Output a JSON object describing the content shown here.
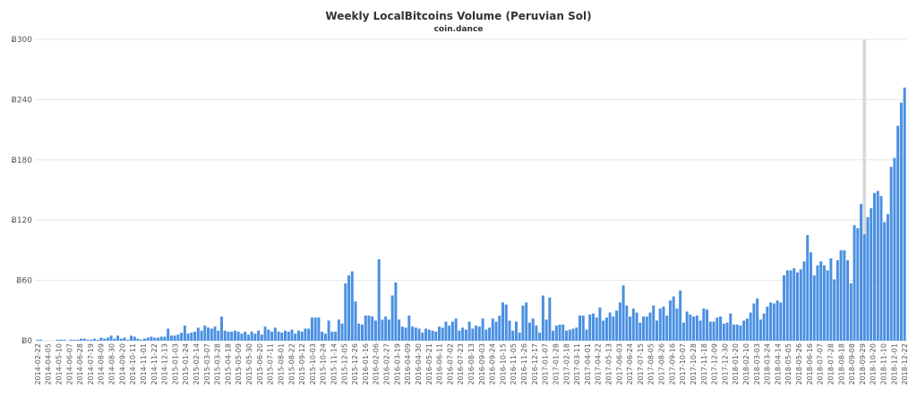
{
  "chart_data": {
    "type": "bar",
    "title": "Weekly LocalBitcoins Volume (Peruvian Sol)",
    "subtitle": "coin.dance",
    "ylim": [
      0,
      300
    ],
    "y_tick_labels": [
      "Ƀ0",
      "Ƀ60",
      "Ƀ120",
      "Ƀ180",
      "Ƀ240",
      "Ƀ300"
    ],
    "x_tick_labels": [
      "2014-02-22",
      "2014-04-05",
      "2014-05-10",
      "2014-06-07",
      "2014-06-28",
      "2014-07-19",
      "2014-08-09",
      "2014-08-30",
      "2014-09-20",
      "2014-10-11",
      "2014-11-01",
      "2014-11-22",
      "2014-12-13",
      "2015-01-03",
      "2015-01-24",
      "2015-02-14",
      "2015-03-07",
      "2015-03-28",
      "2015-04-18",
      "2015-05-09",
      "2015-05-30",
      "2015-06-20",
      "2015-07-11",
      "2015-08-01",
      "2015-08-22",
      "2015-09-12",
      "2015-10-03",
      "2015-10-24",
      "2015-11-14",
      "2015-12-05",
      "2015-12-26",
      "2016-01-16",
      "2016-02-06",
      "2016-02-27",
      "2016-03-19",
      "2016-04-09",
      "2016-04-30",
      "2016-05-21",
      "2016-06-11",
      "2016-07-02",
      "2016-07-23",
      "2016-08-13",
      "2016-09-03",
      "2016-09-24",
      "2016-10-15",
      "2016-11-05",
      "2016-11-26",
      "2016-12-17",
      "2017-01-07",
      "2017-01-28",
      "2017-02-18",
      "2017-03-11",
      "2017-04-01",
      "2017-04-22",
      "2017-05-13",
      "2017-06-03",
      "2017-06-24",
      "2017-07-15",
      "2017-08-05",
      "2017-08-26",
      "2017-09-16",
      "2017-10-07",
      "2017-10-28",
      "2017-11-18",
      "2017-12-09",
      "2017-12-30",
      "2018-01-20",
      "2018-02-10",
      "2018-03-03",
      "2018-03-24",
      "2018-04-14",
      "2018-05-05",
      "2018-05-26",
      "2018-06-16",
      "2018-07-07",
      "2018-07-28",
      "2018-08-18",
      "2018-09-08",
      "2018-09-29",
      "2018-10-20",
      "2018-11-10",
      "2018-12-01",
      "2018-12-22"
    ],
    "highlight_band_index": 247,
    "values": [
      1,
      1,
      0,
      0,
      0,
      0,
      1,
      1,
      1,
      0,
      1,
      1,
      1,
      2,
      2,
      1,
      1,
      2,
      1,
      3,
      2,
      3,
      5,
      2,
      5,
      2,
      3,
      1,
      5,
      4,
      2,
      1,
      2,
      3,
      4,
      3,
      3,
      4,
      4,
      12,
      5,
      5,
      6,
      8,
      15,
      7,
      8,
      9,
      13,
      10,
      15,
      13,
      12,
      14,
      10,
      24,
      10,
      9,
      9,
      10,
      9,
      7,
      9,
      6,
      9,
      7,
      10,
      6,
      14,
      11,
      9,
      13,
      9,
      8,
      10,
      9,
      11,
      7,
      10,
      9,
      12,
      12,
      23,
      23,
      23,
      9,
      7,
      20,
      9,
      9,
      21,
      17,
      57,
      65,
      69,
      39,
      17,
      16,
      25,
      25,
      24,
      20,
      81,
      21,
      24,
      21,
      45,
      58,
      21,
      14,
      13,
      25,
      14,
      13,
      12,
      8,
      12,
      11,
      10,
      9,
      14,
      13,
      19,
      15,
      19,
      22,
      10,
      13,
      11,
      19,
      12,
      15,
      14,
      22,
      11,
      13,
      22,
      19,
      25,
      38,
      36,
      20,
      10,
      19,
      8,
      35,
      38,
      18,
      22,
      15,
      8,
      45,
      21,
      43,
      10,
      15,
      16,
      16,
      10,
      11,
      12,
      13,
      25,
      25,
      11,
      26,
      27,
      23,
      33,
      20,
      23,
      28,
      24,
      30,
      38,
      55,
      35,
      24,
      32,
      28,
      18,
      24,
      24,
      28,
      35,
      20,
      32,
      34,
      25,
      40,
      44,
      32,
      50,
      18,
      29,
      26,
      24,
      25,
      20,
      32,
      31,
      19,
      19,
      23,
      24,
      17,
      18,
      27,
      16,
      16,
      15,
      20,
      22,
      28,
      37,
      42,
      21,
      27,
      34,
      38,
      37,
      40,
      38,
      65,
      70,
      70,
      72,
      68,
      71,
      79,
      105,
      88,
      65,
      75,
      79,
      75,
      70,
      82,
      61,
      80,
      90,
      90,
      80,
      57,
      115,
      112,
      136,
      106,
      123,
      132,
      147,
      149,
      144,
      118,
      126,
      173,
      182,
      214,
      237,
      252
    ]
  }
}
